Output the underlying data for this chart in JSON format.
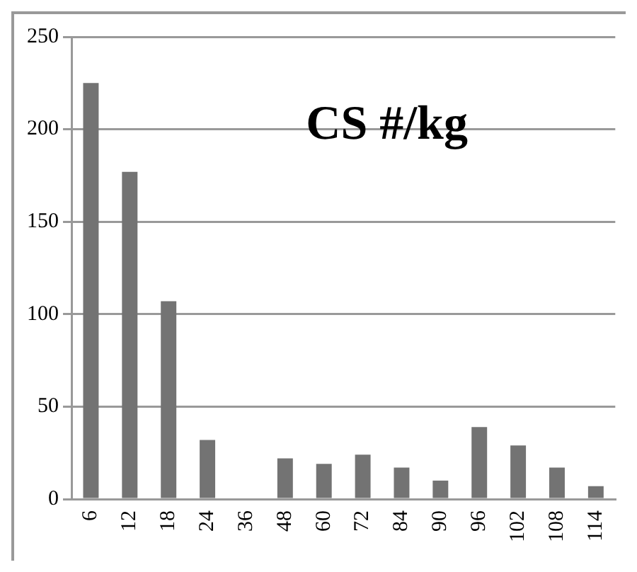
{
  "chart_data": {
    "type": "bar",
    "title": "CS #/kg",
    "categories": [
      "6",
      "12",
      "18",
      "24",
      "36",
      "48",
      "60",
      "72",
      "84",
      "90",
      "96",
      "102",
      "108",
      "114"
    ],
    "values": [
      225,
      177,
      107,
      32,
      0,
      22,
      19,
      24,
      17,
      10,
      39,
      29,
      17,
      7
    ],
    "color": "#737373",
    "ylim": [
      0,
      250
    ],
    "yticks": [
      0,
      50,
      100,
      150,
      200,
      250
    ],
    "grid": "y",
    "legend": false
  }
}
